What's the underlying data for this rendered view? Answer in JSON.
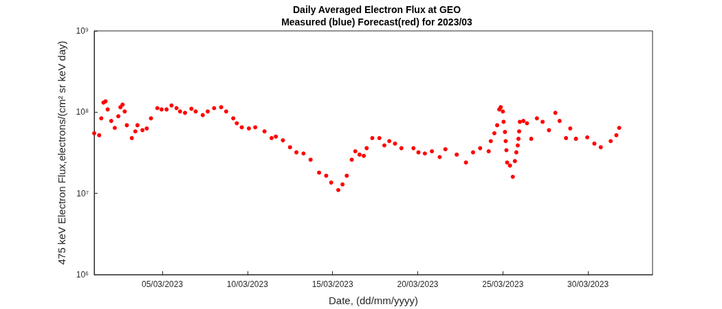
{
  "chart_data": {
    "type": "scatter",
    "title": "Daily Averaged Electron Flux at GEO",
    "subtitle": "Measured (blue) Forecast(red) for 2023/03",
    "xlabel": "Date, (dd/mm/yyyy)",
    "ylabel": "475 keV Electron Flux,electrons/(cm² sr keV day)",
    "log": "y",
    "marker": "circle",
    "grid": false,
    "xlim": [
      "2023-03-01T00:00",
      "2023-04-02T19:00"
    ],
    "xticks": [
      {
        "value": "2023-03-05T00:00",
        "label": "05/03/2023"
      },
      {
        "value": "2023-03-10T00:00",
        "label": "10/03/2023"
      },
      {
        "value": "2023-03-15T00:00",
        "label": "15/03/2023"
      },
      {
        "value": "2023-03-20T00:00",
        "label": "20/03/2023"
      },
      {
        "value": "2023-03-25T00:00",
        "label": "25/03/2023"
      },
      {
        "value": "2023-03-30T00:00",
        "label": "30/03/2023"
      }
    ],
    "ylim": [
      1000000,
      1000000000
    ],
    "yticks": [
      {
        "value": 1000000,
        "label": "10⁶"
      },
      {
        "value": 10000000,
        "label": "10⁷"
      },
      {
        "value": 100000000,
        "label": "10⁸"
      },
      {
        "value": 1000000000,
        "label": "10⁹"
      }
    ],
    "series": [
      {
        "color": "#ff0000",
        "x": [
          "2023-03-01T00:00",
          "2023-03-01T07:00",
          "2023-03-01T10:00",
          "2023-03-01T13:00",
          "2023-03-01T16:00",
          "2023-03-01T19:00",
          "2023-03-02T00:00",
          "2023-03-02T05:00",
          "2023-03-02T10:00",
          "2023-03-02T13:00",
          "2023-03-02T16:00",
          "2023-03-02T19:00",
          "2023-03-02T22:00",
          "2023-03-03T05:00",
          "2023-03-03T10:00",
          "2023-03-03T13:00",
          "2023-03-03T20:00",
          "2023-03-04T02:00",
          "2023-03-04T08:00",
          "2023-03-04T17:00",
          "2023-03-04T23:00",
          "2023-03-05T06:00",
          "2023-03-05T13:00",
          "2023-03-05T20:00",
          "2023-03-06T01:00",
          "2023-03-06T08:00",
          "2023-03-06T17:00",
          "2023-03-06T23:00",
          "2023-03-07T09:00",
          "2023-03-07T16:00",
          "2023-03-08T01:00",
          "2023-03-08T11:00",
          "2023-03-08T18:00",
          "2023-03-09T04:00",
          "2023-03-09T09:00",
          "2023-03-09T16:00",
          "2023-03-10T02:00",
          "2023-03-10T11:00",
          "2023-03-11T00:00",
          "2023-03-11T10:00",
          "2023-03-11T16:00",
          "2023-03-12T02:00",
          "2023-03-12T12:00",
          "2023-03-12T21:00",
          "2023-03-13T07:00",
          "2023-03-13T17:00",
          "2023-03-14T05:00",
          "2023-03-14T15:00",
          "2023-03-14T22:00",
          "2023-03-15T08:00",
          "2023-03-15T14:00",
          "2023-03-15T20:00",
          "2023-03-16T03:00",
          "2023-03-16T08:00",
          "2023-03-16T14:00",
          "2023-03-16T20:00",
          "2023-03-17T00:00",
          "2023-03-17T08:00",
          "2023-03-17T18:00",
          "2023-03-18T01:00",
          "2023-03-18T08:00",
          "2023-03-18T16:00",
          "2023-03-19T01:00",
          "2023-03-19T18:00",
          "2023-03-20T01:00",
          "2023-03-20T10:00",
          "2023-03-20T20:00",
          "2023-03-21T07:00",
          "2023-03-21T15:00",
          "2023-03-22T07:00",
          "2023-03-22T20:00",
          "2023-03-23T06:00",
          "2023-03-23T16:00",
          "2023-03-24T04:00",
          "2023-03-24T07:00",
          "2023-03-24T12:00",
          "2023-03-24T16:00",
          "2023-03-24T19:00",
          "2023-03-24T21:00",
          "2023-03-25T00:00",
          "2023-03-25T01:00",
          "2023-03-25T03:00",
          "2023-03-25T04:00",
          "2023-03-25T05:00",
          "2023-03-25T06:00",
          "2023-03-25T10:00",
          "2023-03-25T14:00",
          "2023-03-25T17:00",
          "2023-03-25T19:00",
          "2023-03-25T21:00",
          "2023-03-25T22:00",
          "2023-03-25T23:00",
          "2023-03-26T00:00",
          "2023-03-26T05:00",
          "2023-03-26T10:00",
          "2023-03-26T16:00",
          "2023-03-27T00:00",
          "2023-03-27T08:00",
          "2023-03-27T17:00",
          "2023-03-28T02:00",
          "2023-03-28T08:00",
          "2023-03-28T17:00",
          "2023-03-28T23:00",
          "2023-03-29T07:00",
          "2023-03-29T23:00",
          "2023-03-30T09:00",
          "2023-03-30T18:00",
          "2023-03-31T08:00",
          "2023-03-31T16:00",
          "2023-03-31T20:00"
        ],
        "values": [
          55000000.0,
          52000000.0,
          84000000.0,
          131000000.0,
          136000000.0,
          108000000.0,
          78000000.0,
          64000000.0,
          89000000.0,
          115000000.0,
          124000000.0,
          102000000.0,
          69000000.0,
          48000000.0,
          58000000.0,
          69000000.0,
          60000000.0,
          63000000.0,
          84000000.0,
          112000000.0,
          108000000.0,
          108000000.0,
          121000000.0,
          112000000.0,
          102000000.0,
          98000000.0,
          110000000.0,
          102000000.0,
          92000000.0,
          102000000.0,
          112000000.0,
          115000000.0,
          102000000.0,
          84000000.0,
          73000000.0,
          65000000.0,
          63000000.0,
          65000000.0,
          58000000.0,
          48000000.0,
          50000000.0,
          45000000.0,
          37000000.0,
          32000000.0,
          31000000.0,
          26000000.0,
          18000000.0,
          16500000.0,
          13600000.0,
          11000000.0,
          12900000.0,
          16500000.0,
          26000000.0,
          33000000.0,
          30000000.0,
          29000000.0,
          36000000.0,
          48000000.0,
          48000000.0,
          39000000.0,
          44000000.0,
          41000000.0,
          36000000.0,
          36000000.0,
          32000000.0,
          31000000.0,
          33000000.0,
          28000000.0,
          35000000.0,
          30000000.0,
          24000000.0,
          32000000.0,
          36000000.0,
          33000000.0,
          44000000.0,
          55000000.0,
          69000000.0,
          108000000.0,
          115000000.0,
          102000000.0,
          76000000.0,
          57000000.0,
          44000000.0,
          34000000.0,
          24000000.0,
          22000000.0,
          16000000.0,
          25000000.0,
          32000000.0,
          39000000.0,
          47000000.0,
          58000000.0,
          76000000.0,
          78000000.0,
          73000000.0,
          47000000.0,
          84000000.0,
          76000000.0,
          60000000.0,
          98000000.0,
          78000000.0,
          48000000.0,
          63000000.0,
          47000000.0,
          49000000.0,
          41000000.0,
          37000000.0,
          44000000.0,
          52000000.0,
          64000000.0
        ]
      }
    ]
  }
}
